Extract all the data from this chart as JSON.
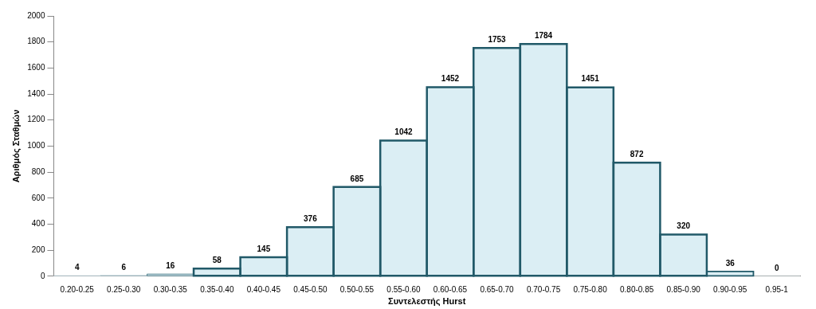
{
  "chart_data": {
    "type": "bar",
    "xlabel": "Συντελεστής Hurst",
    "ylabel": "Αριθμός Σταθμών",
    "categories": [
      "0.20-0.25",
      "0.25-0.30",
      "0.30-0.35",
      "0.35-0.40",
      "0.40-0.45",
      "0.45-0.50",
      "0.50-0.55",
      "0.55-0.60",
      "0.60-0.65",
      "0.65-0.70",
      "0.70-0.75",
      "0.75-0.80",
      "0.80-0.85",
      "0.85-0.90",
      "0.90-0.95",
      "0.95-1"
    ],
    "values": [
      4,
      6,
      16,
      58,
      145,
      376,
      685,
      1042,
      1452,
      1753,
      1784,
      1451,
      872,
      320,
      36,
      0
    ],
    "color": "#dbeef4",
    "ylim": [
      0,
      2000
    ],
    "yticks": [
      0,
      200,
      400,
      600,
      800,
      1000,
      1200,
      1400,
      1600,
      1800,
      2000
    ],
    "grid": false,
    "legend": false,
    "data_labels": true
  }
}
